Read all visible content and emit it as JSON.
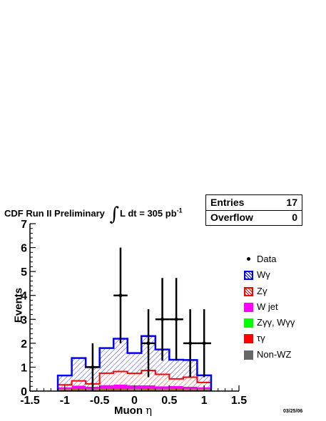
{
  "header": {
    "title_main": "CDF Run II Preliminary",
    "title_lumi": "L dt = 305 pb",
    "title_lumi_exp": "-1",
    "integral_symbol": "∫"
  },
  "stats": {
    "entries_label": "Entries",
    "entries_value": "17",
    "overflow_label": "Overflow",
    "overflow_value": "0"
  },
  "datestamp": "03/25/06",
  "chart_data": {
    "type": "histogram",
    "title": "CDF Run II Preliminary ∫L dt = 305 pb-1",
    "xlabel": "Muon η",
    "ylabel": "Events",
    "xlim": [
      -1.5,
      1.5
    ],
    "ylim": [
      0,
      7
    ],
    "xticks": [
      "-1.5",
      "-1",
      "-0.5",
      "0",
      "0.5",
      "1",
      "1.5"
    ],
    "yticks": [
      "0",
      "1",
      "2",
      "3",
      "4",
      "5",
      "6",
      "7"
    ],
    "bin_edges": [
      -1.1,
      -0.9,
      -0.7,
      -0.5,
      -0.3,
      -0.1,
      0.1,
      0.3,
      0.5,
      0.7,
      0.9,
      1.1
    ],
    "stacked_series": [
      {
        "name": "Non-WZ",
        "color": "#666666",
        "values": [
          0.05,
          0.06,
          0.05,
          0.06,
          0.06,
          0.05,
          0.06,
          0.05,
          0.06,
          0.05,
          0.05
        ]
      },
      {
        "name": "τγ",
        "color": "#ff0000",
        "values": [
          0.02,
          0.02,
          0.02,
          0.02,
          0.02,
          0.02,
          0.02,
          0.02,
          0.02,
          0.02,
          0.02
        ]
      },
      {
        "name": "Zγγ, Wγγ",
        "color": "#00ff00",
        "values": [
          0.01,
          0.01,
          0.01,
          0.01,
          0.01,
          0.01,
          0.01,
          0.01,
          0.01,
          0.01,
          0.01
        ]
      },
      {
        "name": "W jet",
        "color": "#ff00ff",
        "values": [
          0.08,
          0.14,
          0.1,
          0.16,
          0.18,
          0.16,
          0.15,
          0.12,
          0.12,
          0.1,
          0.08
        ]
      },
      {
        "name": "Zγ",
        "color": "#ff0000",
        "values": [
          0.1,
          0.2,
          0.12,
          0.5,
          0.55,
          0.5,
          0.62,
          0.5,
          0.3,
          0.4,
          0.2
        ]
      },
      {
        "name": "Wγ",
        "color": "#0000ff",
        "values": [
          0.4,
          0.95,
          0.7,
          1.05,
          1.37,
          0.85,
          1.44,
          1.04,
          0.8,
          0.72,
          0.3
        ]
      }
    ],
    "totals": [
      0.65,
      1.38,
      1.0,
      1.8,
      2.19,
      1.59,
      2.3,
      1.74,
      1.31,
      1.3,
      0.66
    ],
    "data_points": [
      {
        "x": -0.6,
        "y": 1,
        "err": 1.0
      },
      {
        "x": -0.2,
        "y": 4,
        "err": 2.0
      },
      {
        "x": 0.2,
        "y": 2,
        "err": 1.42
      },
      {
        "x": 0.4,
        "y": 3,
        "err": 1.73
      },
      {
        "x": 0.6,
        "y": 3,
        "err": 1.73
      },
      {
        "x": 0.8,
        "y": 2,
        "err": 1.42
      },
      {
        "x": 1.0,
        "y": 2,
        "err": 1.42
      }
    ],
    "legend": [
      {
        "label": "Data",
        "kind": "dot",
        "color": "#000000"
      },
      {
        "label": "Wγ",
        "kind": "hatch",
        "color": "#0000ff"
      },
      {
        "label": "Zγ",
        "kind": "hatch",
        "color": "#ff0000"
      },
      {
        "label": "W jet",
        "kind": "solid",
        "color": "#ff00ff"
      },
      {
        "label": "Zγγ, Wγγ",
        "kind": "solid",
        "color": "#00ff00"
      },
      {
        "label": "τγ",
        "kind": "solid",
        "color": "#ff0000"
      },
      {
        "label": "Non-WZ",
        "kind": "solid",
        "color": "#666666"
      }
    ],
    "legend_position": "right"
  }
}
